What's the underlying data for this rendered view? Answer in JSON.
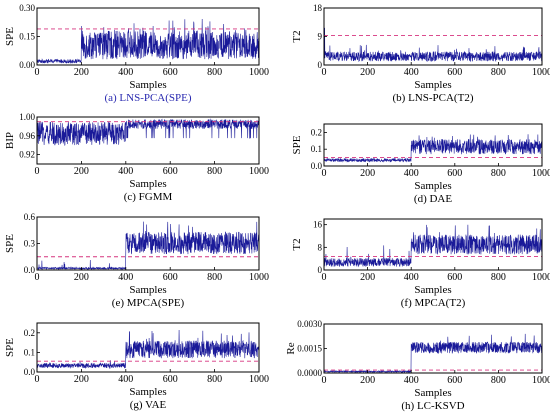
{
  "colors": {
    "signal": "#1a1a99",
    "threshold": "#d6337f",
    "caption": "#2a2ab0",
    "axis": "#000000",
    "text": "#000000"
  },
  "chart_data": [
    {
      "type": "line",
      "panel": "a",
      "caption": "(a) LNS-PCA(SPE)",
      "xlabel": "Samples",
      "ylabel": "SPE",
      "xlim": [
        0,
        1000
      ],
      "ylim": [
        0,
        0.3
      ],
      "xticks": [
        0,
        200,
        400,
        600,
        800,
        1000
      ],
      "yticks": [
        0.0,
        0.15,
        0.3
      ],
      "ytick_labels": [
        "0.00",
        "0.15",
        "0.30"
      ],
      "threshold": 0.19,
      "segments": [
        {
          "x_start": 0,
          "x_end": 200,
          "base": 0.01,
          "amp": 0.02,
          "spike_prob": 0.01,
          "spike_max": 0.04
        },
        {
          "x_start": 200,
          "x_end": 1000,
          "base": 0.03,
          "amp": 0.15,
          "spike_prob": 0.1,
          "spike_max": 0.25
        }
      ]
    },
    {
      "type": "line",
      "panel": "b",
      "caption": "(b) LNS-PCA(T2)",
      "xlabel": "Samples",
      "ylabel": "T2",
      "xlim": [
        0,
        1000
      ],
      "ylim": [
        0,
        18
      ],
      "xticks": [
        0,
        200,
        400,
        600,
        800,
        1000
      ],
      "yticks": [
        0,
        9,
        18
      ],
      "ytick_labels": [
        "0",
        "9",
        "18"
      ],
      "threshold": 9.3,
      "segments": [
        {
          "x_start": 0,
          "x_end": 30,
          "base": 1.5,
          "amp": 3,
          "spike_prob": 0.2,
          "spike_max": 16
        },
        {
          "x_start": 30,
          "x_end": 1000,
          "base": 1.2,
          "amp": 3.0,
          "spike_prob": 0.04,
          "spike_max": 7
        }
      ]
    },
    {
      "type": "line",
      "panel": "c",
      "caption": "(c) FGMM",
      "xlabel": "Samples",
      "ylabel": "BIP",
      "xlim": [
        0,
        1000
      ],
      "ylim": [
        0.9,
        1.0
      ],
      "xticks": [
        0,
        200,
        400,
        600,
        800,
        1000
      ],
      "yticks": [
        0.92,
        0.96,
        1.0
      ],
      "ytick_labels": [
        "0.92",
        "0.96",
        "1.00"
      ],
      "threshold": 0.99,
      "segments": [
        {
          "x_start": 0,
          "x_end": 400,
          "base": 0.94,
          "amp": 0.05,
          "spike_prob": 0.05,
          "spike_max": 0.99
        },
        {
          "x_start": 400,
          "x_end": 1000,
          "base": 0.975,
          "amp": 0.02,
          "spike_prob": 0.04,
          "spike_max": 0.955
        }
      ]
    },
    {
      "type": "line",
      "panel": "d",
      "caption": "(d) DAE",
      "xlabel": "Samples",
      "ylabel": "SPE",
      "xlim": [
        0,
        1000
      ],
      "ylim": [
        0,
        0.25
      ],
      "xticks": [
        0,
        200,
        400,
        600,
        800,
        1000
      ],
      "yticks": [
        0.0,
        0.1,
        0.2
      ],
      "ytick_labels": [
        "0.0",
        "0.1",
        "0.2"
      ],
      "threshold": 0.05,
      "segments": [
        {
          "x_start": 0,
          "x_end": 400,
          "base": 0.025,
          "amp": 0.02,
          "spike_prob": 0.01,
          "spike_max": 0.05
        },
        {
          "x_start": 400,
          "x_end": 1000,
          "base": 0.07,
          "amp": 0.09,
          "spike_prob": 0.06,
          "spike_max": 0.2
        }
      ]
    },
    {
      "type": "line",
      "panel": "e",
      "caption": "(e) MPCA(SPE)",
      "xlabel": "Samples",
      "ylabel": "SPE",
      "xlim": [
        0,
        1000
      ],
      "ylim": [
        0,
        0.6
      ],
      "xticks": [
        0,
        200,
        400,
        600,
        800,
        1000
      ],
      "yticks": [
        0.0,
        0.3,
        0.6
      ],
      "ytick_labels": [
        "0.0",
        "0.3",
        "0.6"
      ],
      "threshold": 0.15,
      "segments": [
        {
          "x_start": 0,
          "x_end": 400,
          "base": 0.01,
          "amp": 0.02,
          "spike_prob": 0.015,
          "spike_max": 0.12
        },
        {
          "x_start": 400,
          "x_end": 1000,
          "base": 0.18,
          "amp": 0.25,
          "spike_prob": 0.08,
          "spike_max": 0.55
        }
      ]
    },
    {
      "type": "line",
      "panel": "f",
      "caption": "(f) MPCA(T2)",
      "xlabel": "Samples",
      "ylabel": "T2",
      "xlim": [
        0,
        1000
      ],
      "ylim": [
        0,
        18
      ],
      "xticks": [
        0,
        200,
        400,
        600,
        800,
        1000
      ],
      "yticks": [
        0,
        8,
        16
      ],
      "ytick_labels": [
        "0",
        "8",
        "16"
      ],
      "threshold": 4.8,
      "segments": [
        {
          "x_start": 0,
          "x_end": 400,
          "base": 1.2,
          "amp": 3.0,
          "spike_prob": 0.03,
          "spike_max": 10
        },
        {
          "x_start": 400,
          "x_end": 1000,
          "base": 5.5,
          "amp": 7.0,
          "spike_prob": 0.06,
          "spike_max": 16
        }
      ]
    },
    {
      "type": "line",
      "panel": "g",
      "caption": "(g) VAE",
      "xlabel": "Samples",
      "ylabel": "SPE",
      "xlim": [
        0,
        1000
      ],
      "ylim": [
        0,
        0.25
      ],
      "xticks": [
        0,
        200,
        400,
        600,
        800,
        1000
      ],
      "yticks": [
        0.0,
        0.1,
        0.2
      ],
      "ytick_labels": [
        "0.0",
        "0.1",
        "0.2"
      ],
      "threshold": 0.055,
      "segments": [
        {
          "x_start": 0,
          "x_end": 400,
          "base": 0.02,
          "amp": 0.025,
          "spike_prob": 0.02,
          "spike_max": 0.07
        },
        {
          "x_start": 400,
          "x_end": 1000,
          "base": 0.07,
          "amp": 0.09,
          "spike_prob": 0.06,
          "spike_max": 0.22
        }
      ]
    },
    {
      "type": "line",
      "panel": "h",
      "caption": "(h) LC-KSVD",
      "xlabel": "Samples",
      "ylabel": "Re",
      "xlim": [
        0,
        1000
      ],
      "ylim": [
        0,
        0.003
      ],
      "xticks": [
        0,
        200,
        400,
        600,
        800,
        1000
      ],
      "yticks": [
        0.0,
        0.0015,
        0.003
      ],
      "ytick_labels": [
        "0.0000",
        "0.0015",
        "0.0030"
      ],
      "threshold": 0.00018,
      "segments": [
        {
          "x_start": 0,
          "x_end": 400,
          "base": 5e-05,
          "amp": 8e-05,
          "spike_prob": 0.0,
          "spike_max": 0.0002
        },
        {
          "x_start": 400,
          "x_end": 1000,
          "base": 0.0012,
          "amp": 0.0007,
          "spike_prob": 0.03,
          "spike_max": 0.0024
        }
      ]
    }
  ]
}
